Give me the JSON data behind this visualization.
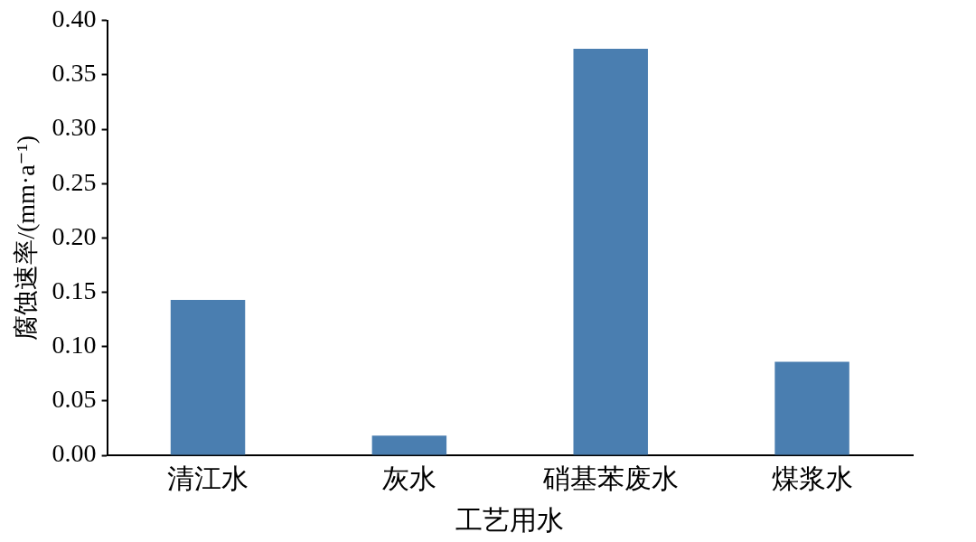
{
  "chart_data": {
    "type": "bar",
    "xlabel": "工艺用水",
    "ylabel": "腐蚀速率/(mm·a⁻¹)",
    "categories": [
      "清江水",
      "灰水",
      "硝基苯废水",
      "煤浆水"
    ],
    "values": [
      0.143,
      0.018,
      0.374,
      0.086
    ],
    "color": "#4a7eb0",
    "ylim": [
      0,
      0.4
    ],
    "yticks": [
      {
        "value": 0,
        "label": "0.00"
      },
      {
        "value": 0.05,
        "label": "0.05"
      },
      {
        "value": 0.1,
        "label": "0.10"
      },
      {
        "value": 0.15,
        "label": "0.15"
      },
      {
        "value": 0.2,
        "label": "0.20"
      },
      {
        "value": 0.25,
        "label": "0.25"
      },
      {
        "value": 0.3,
        "label": "0.30"
      },
      {
        "value": 0.35,
        "label": "0.35"
      },
      {
        "value": 0.4,
        "label": "0.40"
      }
    ],
    "grid": false,
    "legend": false
  }
}
